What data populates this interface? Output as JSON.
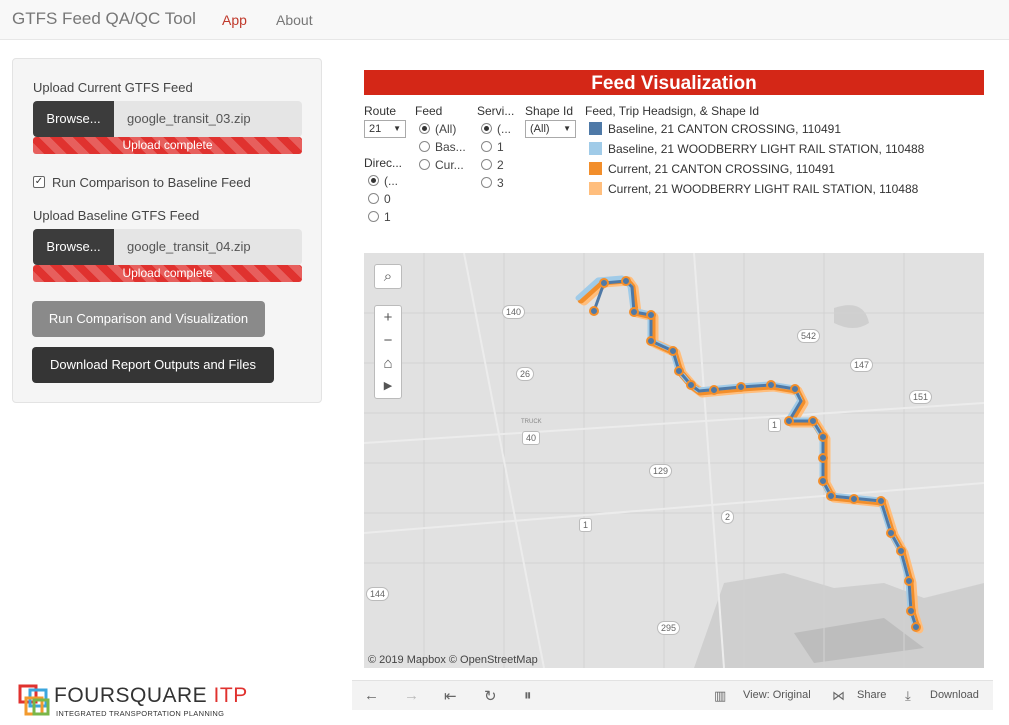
{
  "navbar": {
    "brand": "GTFS Feed QA/QC Tool",
    "tabs": [
      "App",
      "About"
    ]
  },
  "sidebar": {
    "current_label": "Upload Current GTFS Feed",
    "current_browse": "Browse...",
    "current_file": "google_transit_03.zip",
    "current_status": "Upload complete",
    "compare_checked": true,
    "compare_label": "Run Comparison to Baseline Feed",
    "baseline_label": "Upload Baseline GTFS Feed",
    "baseline_browse": "Browse...",
    "baseline_file": "google_transit_04.zip",
    "baseline_status": "Upload complete",
    "run_button": "Run Comparison and Visualization",
    "download_button": "Download Report Outputs and Files"
  },
  "logo": {
    "name": "FOURSQUARE",
    "suffix": "ITP",
    "tagline": "INTEGRATED TRANSPORTATION PLANNING"
  },
  "viz": {
    "title": "Feed Visualization",
    "filters": {
      "route": {
        "label": "Route",
        "value": "21"
      },
      "direction": {
        "label": "Direc...",
        "options": [
          "(...",
          "0",
          "1"
        ],
        "selected": 0
      },
      "feed": {
        "label": "Feed",
        "options": [
          "(All)",
          "Bas...",
          "Cur..."
        ],
        "selected": 0
      },
      "service": {
        "label": "Servi...",
        "options": [
          "(...",
          "1",
          "2",
          "3"
        ],
        "selected": 0
      },
      "shape": {
        "label": "Shape Id",
        "value": "(All)"
      }
    },
    "legend": {
      "title": "Feed, Trip Headsign, & Shape Id",
      "items": [
        {
          "label": "Baseline, 21 CANTON CROSSING, 110491",
          "color": "#4e79a7"
        },
        {
          "label": "Baseline, 21 WOODBERRY LIGHT RAIL STATION, 110488",
          "color": "#a0cbe8"
        },
        {
          "label": "Current, 21 CANTON CROSSING, 110491",
          "color": "#f28e2b"
        },
        {
          "label": "Current, 21 WOODBERRY LIGHT RAIL STATION, 110488",
          "color": "#ffbe7d"
        }
      ]
    },
    "map": {
      "attribution": "© 2019 Mapbox  © OpenStreetMap",
      "shields": [
        "140",
        "542",
        "26",
        "147",
        "151",
        "1",
        "40",
        "TRUCK",
        "129",
        "1",
        "2",
        "144",
        "295"
      ]
    },
    "toolbar": {
      "view": "View: Original",
      "share": "Share",
      "download": "Download"
    }
  }
}
